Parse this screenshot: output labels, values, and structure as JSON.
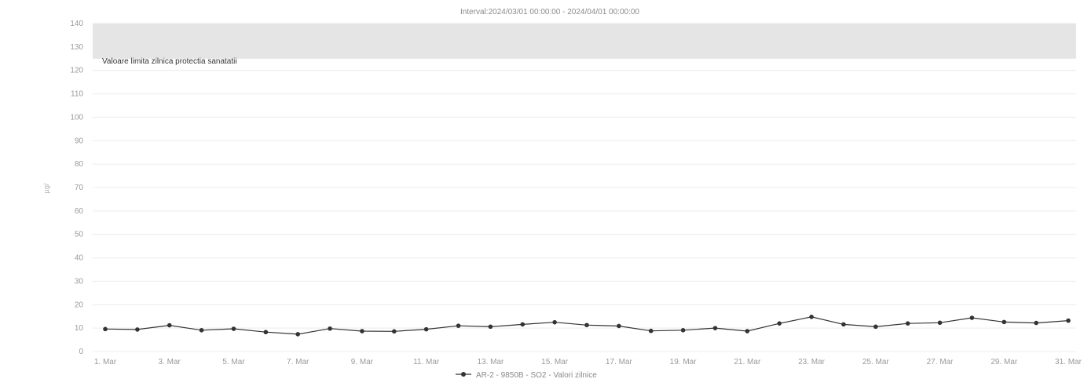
{
  "chart_data": {
    "type": "line",
    "title": "Interval:2024/03/01 00:00:00 - 2024/04/01 00:00:00",
    "ylabel": "µg/",
    "xlabel": "",
    "yticks": [
      "0",
      "10",
      "20",
      "30",
      "40",
      "50",
      "60",
      "70",
      "80",
      "90",
      "100",
      "110",
      "120",
      "130",
      "140"
    ],
    "ylim": [
      0,
      140
    ],
    "xticks": [
      "1. Mar",
      "3. Mar",
      "5. Mar",
      "7. Mar",
      "9. Mar",
      "11. Mar",
      "13. Mar",
      "15. Mar",
      "17. Mar",
      "19. Mar",
      "21. Mar",
      "23. Mar",
      "25. Mar",
      "27. Mar",
      "29. Mar",
      "31. Mar"
    ],
    "limit_band": {
      "from": 125,
      "to": 140,
      "label": "Valoare limita zilnica protectia sanatatii",
      "color": "#e5e5e5"
    },
    "series": [
      {
        "name": "AR-2 - 9850B - SO2 - Valori zilnice",
        "color": "#333333",
        "values": [
          9.6,
          9.4,
          11.2,
          9.1,
          9.7,
          8.3,
          7.4,
          9.8,
          8.7,
          8.6,
          9.5,
          11.0,
          10.6,
          11.6,
          12.5,
          11.3,
          10.9,
          8.8,
          9.1,
          10.0,
          8.7,
          12.0,
          14.8,
          11.6,
          10.6,
          12.0,
          12.3,
          14.4,
          12.6,
          12.2,
          13.2
        ]
      }
    ],
    "grid": true,
    "legend_position": "bottom"
  }
}
